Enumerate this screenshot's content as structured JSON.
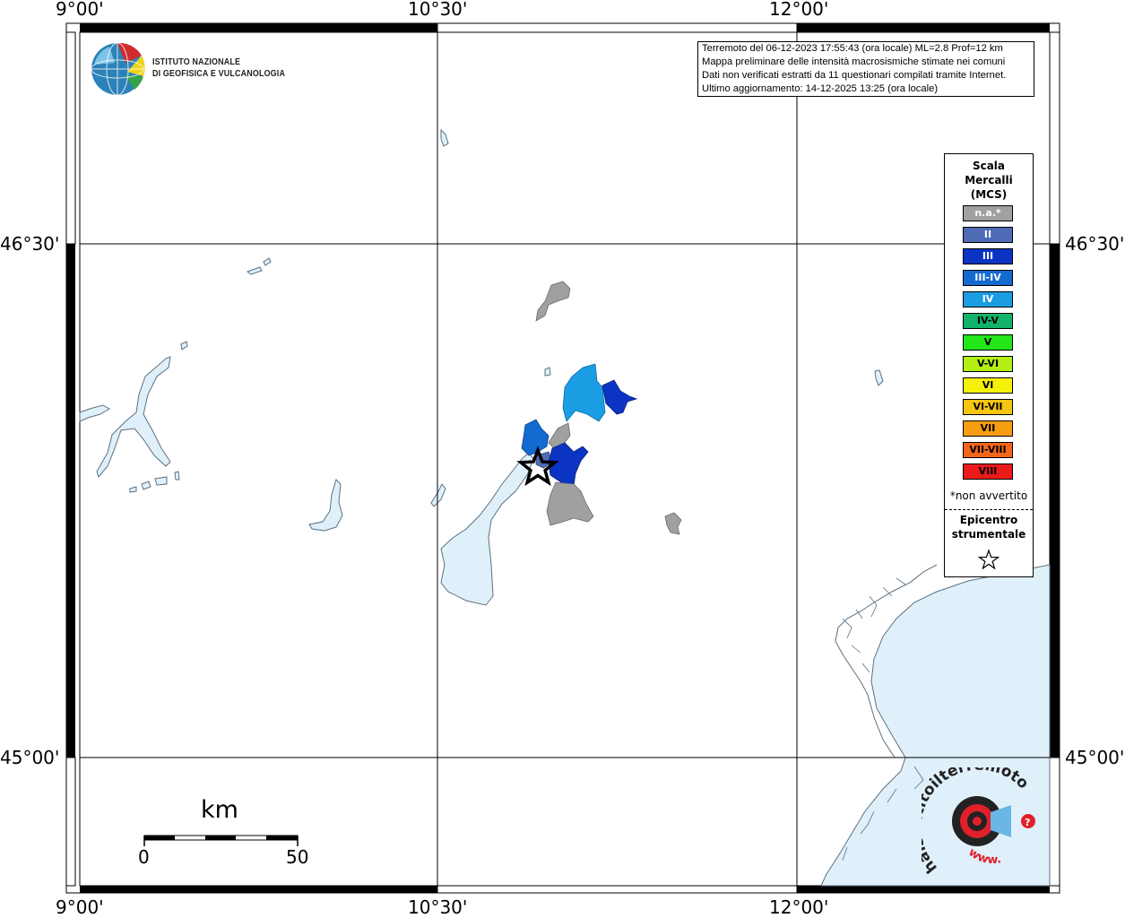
{
  "map": {
    "lon_ticks": [
      "9°00'",
      "10°30'",
      "12°00'"
    ],
    "lat_ticks": [
      "46°30'",
      "45°00'"
    ]
  },
  "logo": {
    "line1": "ISTITUTO NAZIONALE",
    "line2": "DI GEOFISICA E VULCANOLOGIA"
  },
  "info": {
    "line1": "Terremoto del 06-12-2023 17:55:43 (ora locale) ML=2.8 Prof=12 km",
    "line2": "Mappa preliminare delle intensità macrosismiche stimate nei comuni",
    "line3": "Dati non verificati estratti da 11 questionari compilati tramite Internet.",
    "line4": "Ultimo aggiornamento: 14-12-2025 13:25 (ora locale)"
  },
  "legend": {
    "title_line1": "Scala",
    "title_line2": "Mercalli",
    "title_line3": "(MCS)",
    "items": [
      {
        "label": "n.a.*",
        "color": "#a0a0a0"
      },
      {
        "label": "II",
        "color": "#4f6bb5"
      },
      {
        "label": "III",
        "color": "#0c34c4"
      },
      {
        "label": "III-IV",
        "color": "#136ad0"
      },
      {
        "label": "IV",
        "color": "#1a9de3"
      },
      {
        "label": "IV-V",
        "color": "#11b36a"
      },
      {
        "label": "V",
        "color": "#22e51a"
      },
      {
        "label": "V-VI",
        "color": "#b4ef16"
      },
      {
        "label": "VI",
        "color": "#f6f10a"
      },
      {
        "label": "VI-VII",
        "color": "#f6c511"
      },
      {
        "label": "VII",
        "color": "#f79d12"
      },
      {
        "label": "VII-VIII",
        "color": "#f3661a"
      },
      {
        "label": "VIII",
        "color": "#ec1a1a"
      }
    ],
    "note": "*non avvertito",
    "epicenter_line1": "Epicentro",
    "epicenter_line2": "strumentale"
  },
  "scale_bar": {
    "unit": "km",
    "start": "0",
    "end": "50"
  },
  "watermark": {
    "text": "haisentitoilterremoto.it",
    "prefix": "www."
  },
  "colors": {
    "water": "#e0f0fb",
    "water_stroke": "#5b7080",
    "na": "#a0a0a0",
    "ii": "#4f6bb5",
    "iii": "#0c34c4",
    "iii_iv": "#136ad0",
    "iv": "#1a9de3"
  }
}
